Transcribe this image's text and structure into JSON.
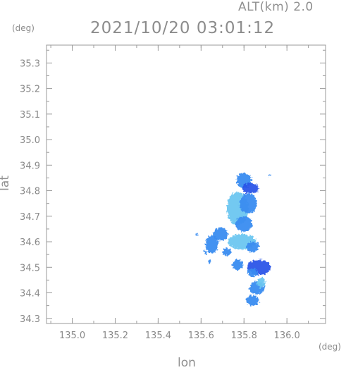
{
  "header": {
    "altitude_text": "ALT(km) 2.0",
    "timestamp": "2021/10/20 03:01:12"
  },
  "axes": {
    "y_unit": "(deg)",
    "x_unit": "(deg)",
    "y_label": "lat",
    "x_label": "lon"
  },
  "chart_data": {
    "type": "heatmap",
    "xlabel": "lon",
    "ylabel": "lat",
    "xlim": [
      134.88,
      136.18
    ],
    "ylim": [
      34.28,
      35.37
    ],
    "x_ticks": [
      "135.0",
      "135.2",
      "135.4",
      "135.6",
      "135.8",
      "136.0"
    ],
    "y_ticks": [
      "34.3",
      "34.4",
      "34.5",
      "34.6",
      "34.7",
      "34.8",
      "34.9",
      "35.0",
      "35.1",
      "35.2",
      "35.3"
    ],
    "grid": false,
    "colors": {
      "light": "#6cc6f0",
      "medium": "#3a8cf0",
      "strong": "#2a55e8",
      "axis": "#9a9a9a"
    },
    "echo_regions": [
      {
        "lon": 135.8,
        "lat": 34.84,
        "rlon": 0.035,
        "rlat": 0.03,
        "level": "medium"
      },
      {
        "lon": 135.83,
        "lat": 34.81,
        "rlon": 0.04,
        "rlat": 0.02,
        "level": "strong"
      },
      {
        "lon": 135.77,
        "lat": 34.73,
        "rlon": 0.05,
        "rlat": 0.065,
        "level": "light"
      },
      {
        "lon": 135.82,
        "lat": 34.75,
        "rlon": 0.04,
        "rlat": 0.04,
        "level": "medium"
      },
      {
        "lon": 135.8,
        "lat": 34.67,
        "rlon": 0.04,
        "rlat": 0.03,
        "level": "medium"
      },
      {
        "lon": 135.69,
        "lat": 34.63,
        "rlon": 0.035,
        "rlat": 0.025,
        "level": "medium"
      },
      {
        "lon": 135.65,
        "lat": 34.59,
        "rlon": 0.03,
        "rlat": 0.035,
        "level": "medium"
      },
      {
        "lon": 135.79,
        "lat": 34.6,
        "rlon": 0.065,
        "rlat": 0.03,
        "level": "light"
      },
      {
        "lon": 135.84,
        "lat": 34.58,
        "rlon": 0.03,
        "rlat": 0.02,
        "level": "medium"
      },
      {
        "lon": 135.72,
        "lat": 34.56,
        "rlon": 0.02,
        "rlat": 0.015,
        "level": "medium"
      },
      {
        "lon": 135.77,
        "lat": 34.51,
        "rlon": 0.025,
        "rlat": 0.02,
        "level": "medium"
      },
      {
        "lon": 135.87,
        "lat": 34.5,
        "rlon": 0.055,
        "rlat": 0.03,
        "level": "strong"
      },
      {
        "lon": 135.84,
        "lat": 34.48,
        "rlon": 0.025,
        "rlat": 0.015,
        "level": "medium"
      },
      {
        "lon": 135.86,
        "lat": 34.42,
        "rlon": 0.035,
        "rlat": 0.025,
        "level": "medium"
      },
      {
        "lon": 135.88,
        "lat": 34.44,
        "rlon": 0.02,
        "rlat": 0.02,
        "level": "light"
      },
      {
        "lon": 135.84,
        "lat": 34.37,
        "rlon": 0.03,
        "rlat": 0.02,
        "level": "medium"
      },
      {
        "lon": 135.62,
        "lat": 34.56,
        "rlon": 0.008,
        "rlat": 0.008,
        "level": "medium"
      },
      {
        "lon": 135.64,
        "lat": 34.52,
        "rlon": 0.006,
        "rlat": 0.006,
        "level": "medium"
      },
      {
        "lon": 135.58,
        "lat": 34.63,
        "rlon": 0.005,
        "rlat": 0.005,
        "level": "medium"
      },
      {
        "lon": 135.92,
        "lat": 34.86,
        "rlon": 0.004,
        "rlat": 0.004,
        "level": "medium"
      }
    ]
  }
}
